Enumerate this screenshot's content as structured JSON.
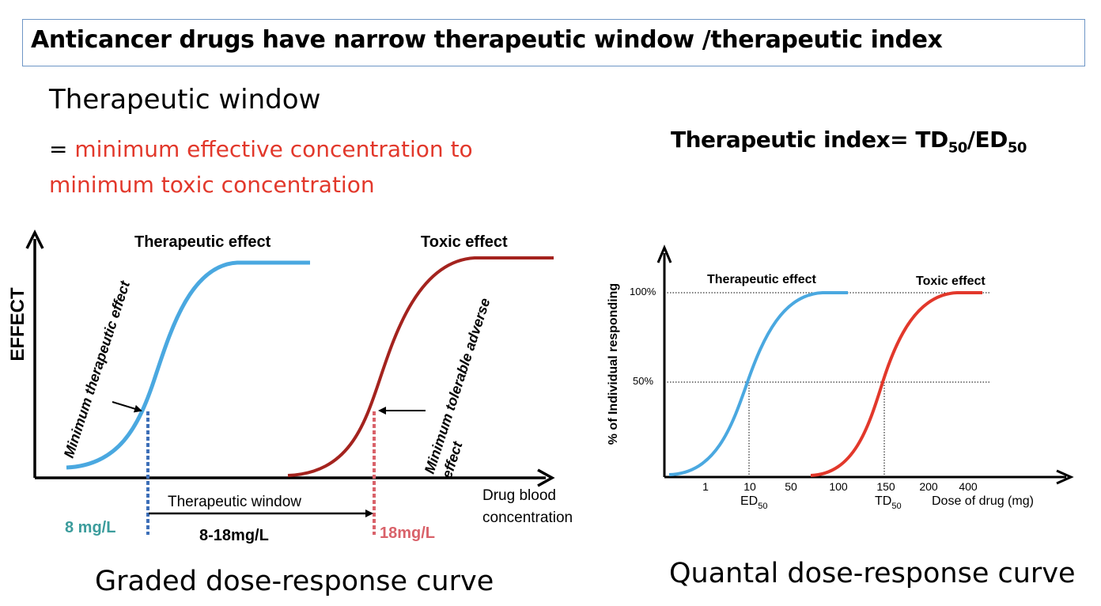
{
  "title": "Anticancer drugs have narrow therapeutic window /therapeutic index",
  "window_heading": "Therapeutic window",
  "window_def_eq": "= ",
  "window_def_text": "minimum effective concentration to minimum toxic concentration",
  "index_formula": {
    "label": "Therapeutic index= TD",
    "sub1": "50",
    "sep": "/ED",
    "sub2": "50"
  },
  "graded": {
    "caption": "Graded dose-response curve",
    "y_label": "EFFECT",
    "x_label_line1": "Drug blood",
    "x_label_line2": "concentration",
    "therapeutic_label": "Therapeutic  effect",
    "toxic_label": "Toxic effect",
    "min_therapeutic": "Minimum therapeutic effect",
    "min_tolerable_line1": "Minimum tolerable adverse",
    "min_tolerable_line2": "effect",
    "window_label": "Therapeutic window",
    "range_label": "8-18mg/L",
    "low_label": "8 mg/L",
    "high_label": "18mg/L",
    "colors": {
      "therapeutic": "#4aa8e0",
      "toxic": "#a4231e",
      "low": "#3b9c9c",
      "high": "#d9626a"
    }
  },
  "quantal": {
    "caption": "Quantal dose-response curve",
    "y_label": "% of Individual responding",
    "therapeutic_label": "Therapeutic  effect",
    "toxic_label": "Toxic effect",
    "y_ticks": [
      "100%",
      "50%"
    ],
    "x_ticks": [
      "1",
      "10",
      "50",
      "100",
      "150",
      "200",
      "400"
    ],
    "ed_label": "ED",
    "ed_sub": "50",
    "td_label": "TD",
    "td_sub": "50",
    "x_label": "Dose of drug (mg)",
    "colors": {
      "therapeutic": "#4aa8e0",
      "toxic": "#e2382b"
    }
  }
}
